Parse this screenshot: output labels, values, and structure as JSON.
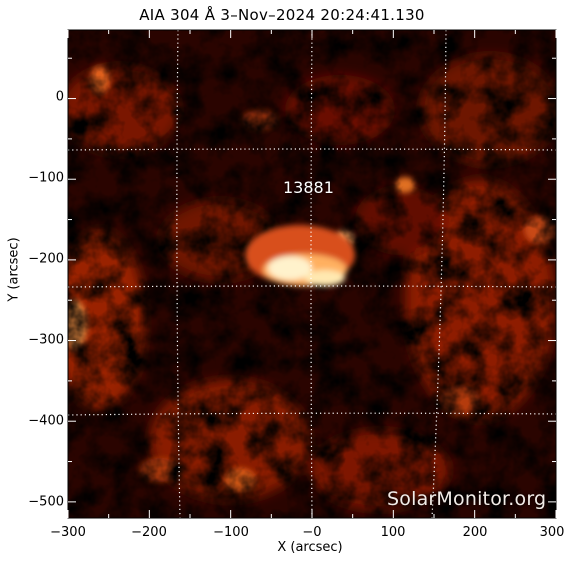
{
  "title": "AIA 304 Å  3–Nov–2024 20:24:41.130",
  "x_axis": {
    "label": "X (arcsec)",
    "ticks": [
      "−300",
      "−200",
      "−100",
      "−0",
      "100",
      "200",
      "300"
    ],
    "tick_values": [
      -300,
      -200,
      -100,
      0,
      100,
      200,
      300
    ],
    "range": [
      -300,
      300
    ]
  },
  "y_axis": {
    "label": "Y (arcsec)",
    "ticks": [
      "0",
      "−100",
      "−200",
      "−300",
      "−400",
      "−500"
    ],
    "tick_values": [
      0,
      -100,
      -200,
      -300,
      -400,
      -500
    ],
    "range": [
      -520,
      85
    ]
  },
  "active_region": {
    "label": "13881",
    "x": -12,
    "y": -115
  },
  "watermark": "SolarMonitor.org",
  "colors": {
    "background": "#1a0200",
    "bright": "#fff6d8",
    "mid": "#c03008",
    "grid": "#ffffff"
  }
}
